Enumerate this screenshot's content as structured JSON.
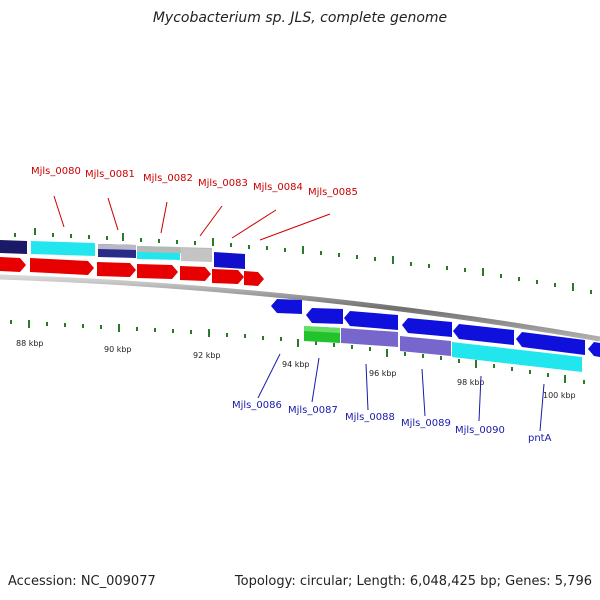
{
  "title": "Mycobacterium sp. JLS, complete genome",
  "footer": {
    "accession": "Accession: NC_009077",
    "stats": "Topology: circular; Length: 6,048,425 bp; Genes: 5,796"
  },
  "colors": {
    "forward_label": "#cc0000",
    "reverse_label": "#1a1aaa",
    "tick": "#2a7a2a",
    "backbone": "#8a8a8a"
  },
  "scale_labels": [
    "88 kbp",
    "90 kbp",
    "92 kbp",
    "94 kbp",
    "96 kbp",
    "98 kbp",
    "100 kbp"
  ],
  "forward_labels": [
    "Mjls_0080",
    "Mjls_0081",
    "Mjls_0082",
    "Mjls_0083",
    "Mjls_0084",
    "Mjls_0085"
  ],
  "reverse_labels": [
    "Mjls_0086",
    "Mjls_0087",
    "Mjls_0088",
    "Mjls_0089",
    "Mjls_0090",
    "pntA"
  ]
}
